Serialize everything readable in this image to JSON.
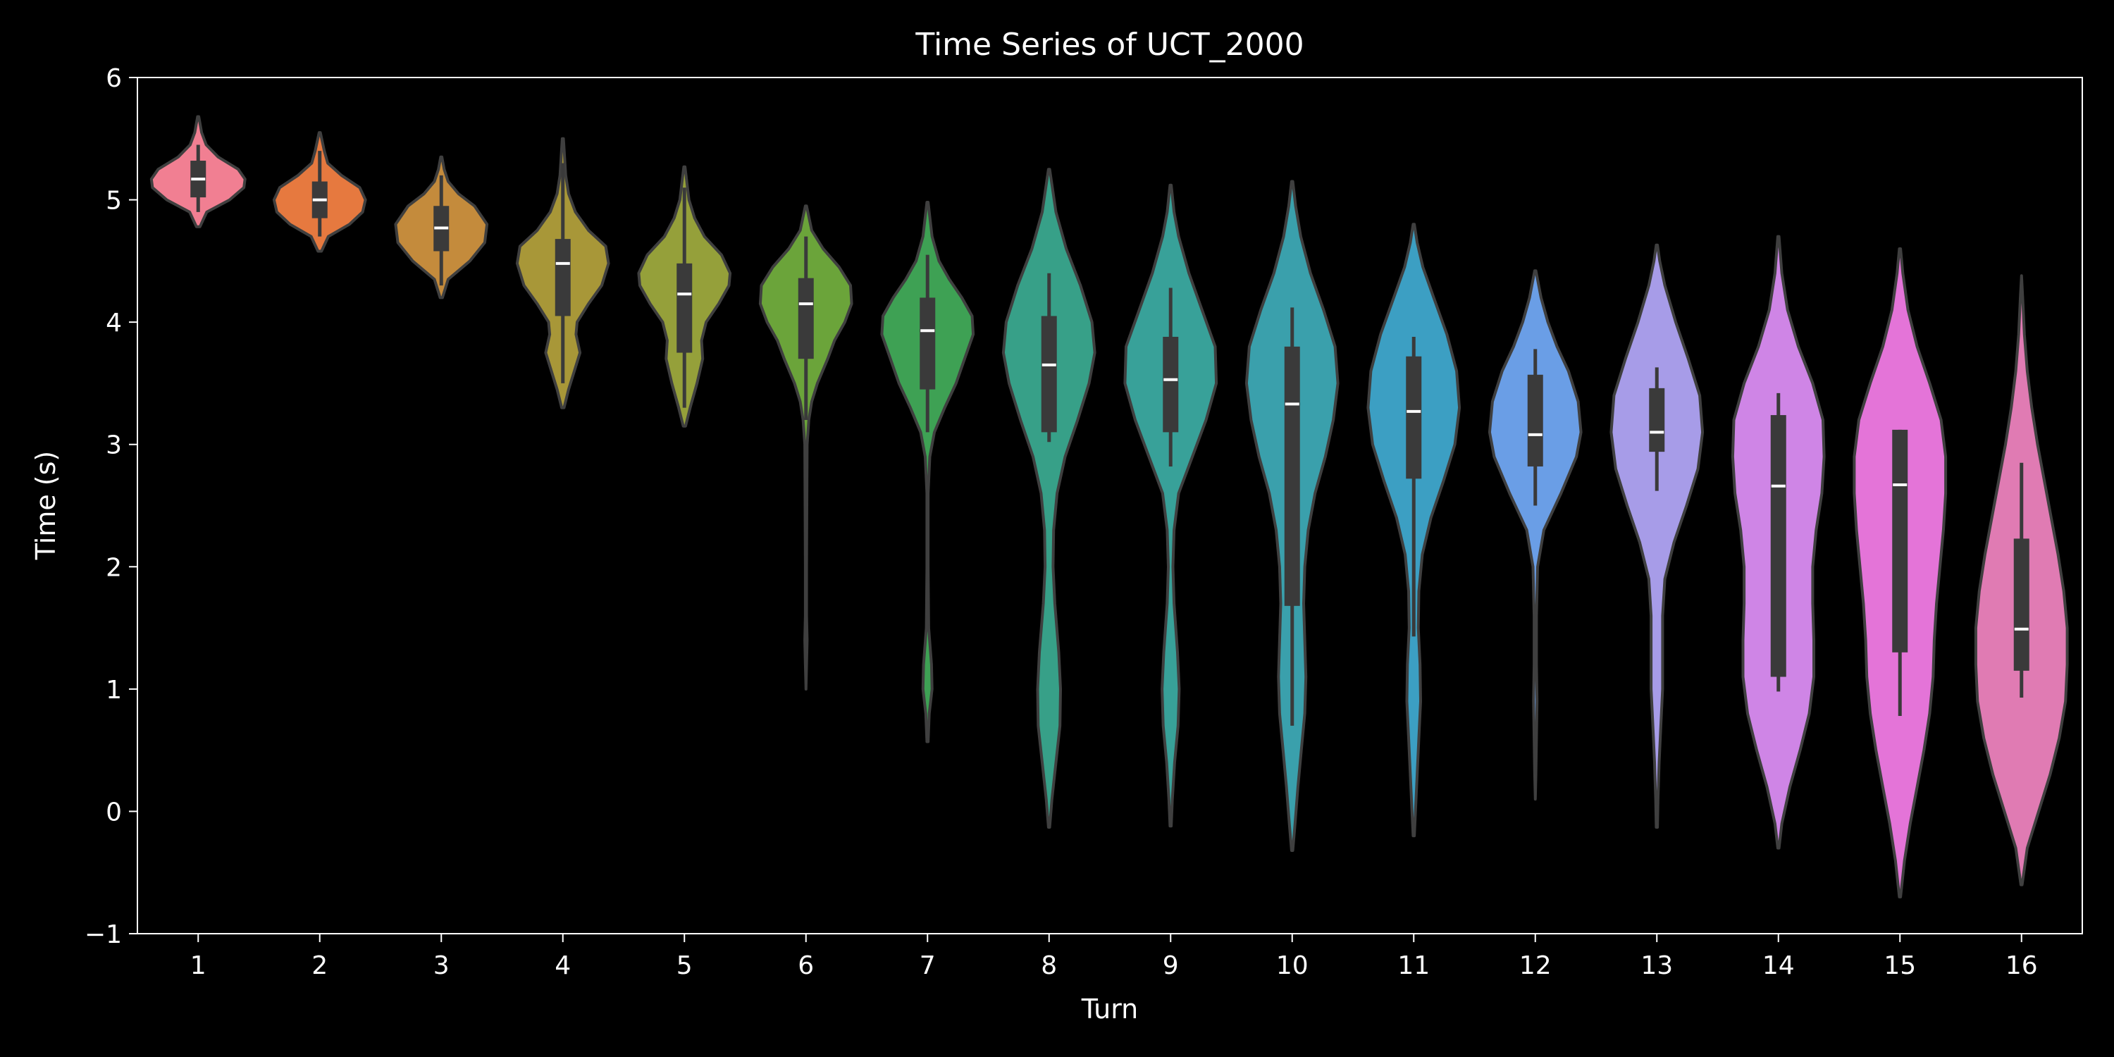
{
  "chart_data": {
    "type": "violin",
    "title": "Time Series of UCT_2000",
    "xlabel": "Turn",
    "ylabel": "Time (s)",
    "ylim": [
      -1,
      6
    ],
    "y_ticks": [
      -1,
      0,
      1,
      2,
      3,
      4,
      5,
      6
    ],
    "y_tick_labels": [
      "−1",
      "0",
      "1",
      "2",
      "3",
      "4",
      "5",
      "6"
    ],
    "grid": false,
    "legend": "none",
    "categories": [
      "1",
      "2",
      "3",
      "4",
      "5",
      "6",
      "7",
      "8",
      "9",
      "10",
      "11",
      "12",
      "13",
      "14",
      "15",
      "16"
    ],
    "series": [
      {
        "color": "#f17f92",
        "min": 4.78,
        "max": 5.68,
        "q1": 5.02,
        "median": 5.17,
        "q3": 5.32,
        "wmin": 4.9,
        "wmax": 5.45,
        "density": [
          [
            4.78,
            0.03
          ],
          [
            4.9,
            0.15
          ],
          [
            5.0,
            0.55
          ],
          [
            5.1,
            0.8
          ],
          [
            5.17,
            0.82
          ],
          [
            5.25,
            0.7
          ],
          [
            5.35,
            0.35
          ],
          [
            5.45,
            0.14
          ],
          [
            5.55,
            0.06
          ],
          [
            5.68,
            0.01
          ]
        ]
      },
      {
        "color": "#e6793f",
        "min": 4.58,
        "max": 5.55,
        "q1": 4.85,
        "median": 5.0,
        "q3": 5.15,
        "wmin": 4.7,
        "wmax": 5.4,
        "density": [
          [
            4.58,
            0.03
          ],
          [
            4.7,
            0.15
          ],
          [
            4.8,
            0.52
          ],
          [
            4.9,
            0.75
          ],
          [
            5.0,
            0.8
          ],
          [
            5.1,
            0.7
          ],
          [
            5.2,
            0.38
          ],
          [
            5.3,
            0.14
          ],
          [
            5.4,
            0.08
          ],
          [
            5.55,
            0.01
          ]
        ]
      },
      {
        "color": "#c48b3c",
        "min": 4.2,
        "max": 5.35,
        "q1": 4.58,
        "median": 4.77,
        "q3": 4.95,
        "wmin": 4.3,
        "wmax": 5.2,
        "density": [
          [
            4.2,
            0.02
          ],
          [
            4.35,
            0.12
          ],
          [
            4.5,
            0.5
          ],
          [
            4.65,
            0.76
          ],
          [
            4.8,
            0.8
          ],
          [
            4.95,
            0.58
          ],
          [
            5.05,
            0.3
          ],
          [
            5.15,
            0.12
          ],
          [
            5.25,
            0.05
          ],
          [
            5.35,
            0.01
          ]
        ]
      },
      {
        "color": "#a89738",
        "min": 3.3,
        "max": 5.5,
        "q1": 4.05,
        "median": 4.48,
        "q3": 4.68,
        "wmin": 3.5,
        "wmax": 5.3,
        "density": [
          [
            3.3,
            0.02
          ],
          [
            3.45,
            0.1
          ],
          [
            3.6,
            0.2
          ],
          [
            3.75,
            0.3
          ],
          [
            3.9,
            0.23
          ],
          [
            4.0,
            0.25
          ],
          [
            4.15,
            0.45
          ],
          [
            4.3,
            0.68
          ],
          [
            4.48,
            0.8
          ],
          [
            4.62,
            0.75
          ],
          [
            4.75,
            0.45
          ],
          [
            4.9,
            0.22
          ],
          [
            5.05,
            0.1
          ],
          [
            5.2,
            0.05
          ],
          [
            5.5,
            0.01
          ]
        ]
      },
      {
        "color": "#95a03a",
        "min": 3.15,
        "max": 5.27,
        "q1": 3.75,
        "median": 4.23,
        "q3": 4.48,
        "wmin": 3.3,
        "wmax": 5.1,
        "density": [
          [
            3.15,
            0.02
          ],
          [
            3.3,
            0.1
          ],
          [
            3.5,
            0.22
          ],
          [
            3.7,
            0.32
          ],
          [
            3.85,
            0.3
          ],
          [
            4.0,
            0.38
          ],
          [
            4.15,
            0.6
          ],
          [
            4.3,
            0.78
          ],
          [
            4.4,
            0.8
          ],
          [
            4.55,
            0.65
          ],
          [
            4.7,
            0.35
          ],
          [
            4.85,
            0.18
          ],
          [
            5.0,
            0.08
          ],
          [
            5.27,
            0.01
          ]
        ]
      },
      {
        "color": "#6ba43a",
        "min": 1.0,
        "max": 4.95,
        "q1": 3.7,
        "median": 4.15,
        "q3": 4.36,
        "wmin": 3.2,
        "wmax": 4.7,
        "density": [
          [
            1.0,
            0.0
          ],
          [
            1.2,
            0.01
          ],
          [
            1.4,
            0.02
          ],
          [
            1.6,
            0.01
          ],
          [
            2.0,
            0.01
          ],
          [
            3.0,
            0.02
          ],
          [
            3.2,
            0.05
          ],
          [
            3.35,
            0.1
          ],
          [
            3.5,
            0.2
          ],
          [
            3.7,
            0.38
          ],
          [
            3.85,
            0.5
          ],
          [
            4.0,
            0.68
          ],
          [
            4.15,
            0.8
          ],
          [
            4.3,
            0.78
          ],
          [
            4.45,
            0.58
          ],
          [
            4.6,
            0.3
          ],
          [
            4.75,
            0.1
          ],
          [
            4.95,
            0.01
          ]
        ]
      },
      {
        "color": "#3ea154",
        "min": 0.57,
        "max": 4.98,
        "q1": 3.45,
        "median": 3.93,
        "q3": 4.2,
        "wmin": 3.1,
        "wmax": 4.55,
        "density": [
          [
            0.57,
            0.01
          ],
          [
            0.8,
            0.03
          ],
          [
            1.0,
            0.08
          ],
          [
            1.2,
            0.07
          ],
          [
            1.5,
            0.02
          ],
          [
            2.0,
            0.01
          ],
          [
            2.6,
            0.01
          ],
          [
            2.9,
            0.04
          ],
          [
            3.1,
            0.12
          ],
          [
            3.3,
            0.3
          ],
          [
            3.5,
            0.5
          ],
          [
            3.7,
            0.65
          ],
          [
            3.9,
            0.8
          ],
          [
            4.05,
            0.78
          ],
          [
            4.2,
            0.6
          ],
          [
            4.35,
            0.38
          ],
          [
            4.5,
            0.2
          ],
          [
            4.7,
            0.08
          ],
          [
            4.98,
            0.01
          ]
        ]
      },
      {
        "color": "#37a088",
        "min": -0.13,
        "max": 5.25,
        "q1": 3.1,
        "median": 3.65,
        "q3": 4.05,
        "wmin": 3.02,
        "wmax": 4.4,
        "density": [
          [
            -0.13,
            0.01
          ],
          [
            0.1,
            0.05
          ],
          [
            0.4,
            0.12
          ],
          [
            0.7,
            0.19
          ],
          [
            1.0,
            0.2
          ],
          [
            1.3,
            0.17
          ],
          [
            1.7,
            0.1
          ],
          [
            2.0,
            0.07
          ],
          [
            2.3,
            0.08
          ],
          [
            2.6,
            0.14
          ],
          [
            2.9,
            0.28
          ],
          [
            3.2,
            0.5
          ],
          [
            3.5,
            0.7
          ],
          [
            3.75,
            0.8
          ],
          [
            4.0,
            0.75
          ],
          [
            4.3,
            0.55
          ],
          [
            4.6,
            0.3
          ],
          [
            4.9,
            0.12
          ],
          [
            5.25,
            0.01
          ]
        ]
      },
      {
        "color": "#38a199",
        "min": -0.12,
        "max": 5.12,
        "q1": 3.1,
        "median": 3.53,
        "q3": 3.88,
        "wmin": 2.82,
        "wmax": 4.28,
        "density": [
          [
            -0.12,
            0.01
          ],
          [
            0.1,
            0.03
          ],
          [
            0.4,
            0.07
          ],
          [
            0.7,
            0.13
          ],
          [
            1.0,
            0.15
          ],
          [
            1.3,
            0.12
          ],
          [
            1.7,
            0.06
          ],
          [
            2.0,
            0.04
          ],
          [
            2.3,
            0.06
          ],
          [
            2.6,
            0.14
          ],
          [
            2.9,
            0.38
          ],
          [
            3.2,
            0.62
          ],
          [
            3.5,
            0.8
          ],
          [
            3.8,
            0.78
          ],
          [
            4.1,
            0.55
          ],
          [
            4.4,
            0.32
          ],
          [
            4.7,
            0.14
          ],
          [
            4.9,
            0.06
          ],
          [
            5.12,
            0.01
          ]
        ]
      },
      {
        "color": "#3aa0ac",
        "min": -0.32,
        "max": 5.15,
        "q1": 1.68,
        "median": 3.33,
        "q3": 3.8,
        "wmin": 0.7,
        "wmax": 4.12,
        "density": [
          [
            -0.32,
            0.01
          ],
          [
            -0.1,
            0.05
          ],
          [
            0.2,
            0.1
          ],
          [
            0.5,
            0.16
          ],
          [
            0.8,
            0.22
          ],
          [
            1.1,
            0.24
          ],
          [
            1.4,
            0.22
          ],
          [
            1.7,
            0.2
          ],
          [
            2.0,
            0.22
          ],
          [
            2.3,
            0.28
          ],
          [
            2.6,
            0.4
          ],
          [
            2.9,
            0.58
          ],
          [
            3.2,
            0.72
          ],
          [
            3.5,
            0.8
          ],
          [
            3.8,
            0.75
          ],
          [
            4.1,
            0.55
          ],
          [
            4.4,
            0.32
          ],
          [
            4.7,
            0.15
          ],
          [
            4.95,
            0.06
          ],
          [
            5.15,
            0.01
          ]
        ]
      },
      {
        "color": "#3c9fc3",
        "min": -0.2,
        "max": 4.8,
        "q1": 2.72,
        "median": 3.27,
        "q3": 3.72,
        "wmin": 1.43,
        "wmax": 3.88,
        "density": [
          [
            -0.2,
            0.01
          ],
          [
            0.0,
            0.03
          ],
          [
            0.3,
            0.06
          ],
          [
            0.6,
            0.09
          ],
          [
            0.9,
            0.12
          ],
          [
            1.2,
            0.11
          ],
          [
            1.5,
            0.08
          ],
          [
            1.8,
            0.09
          ],
          [
            2.1,
            0.15
          ],
          [
            2.4,
            0.3
          ],
          [
            2.7,
            0.52
          ],
          [
            3.0,
            0.72
          ],
          [
            3.3,
            0.8
          ],
          [
            3.6,
            0.75
          ],
          [
            3.9,
            0.58
          ],
          [
            4.2,
            0.35
          ],
          [
            4.45,
            0.16
          ],
          [
            4.65,
            0.06
          ],
          [
            4.8,
            0.01
          ]
        ]
      },
      {
        "color": "#6a9ee6",
        "min": 0.1,
        "max": 4.42,
        "q1": 2.82,
        "median": 3.08,
        "q3": 3.57,
        "wmin": 2.5,
        "wmax": 3.78,
        "density": [
          [
            0.1,
            0.0
          ],
          [
            0.3,
            0.01
          ],
          [
            0.6,
            0.02
          ],
          [
            0.9,
            0.03
          ],
          [
            1.2,
            0.02
          ],
          [
            1.6,
            0.02
          ],
          [
            2.0,
            0.04
          ],
          [
            2.3,
            0.15
          ],
          [
            2.6,
            0.45
          ],
          [
            2.9,
            0.72
          ],
          [
            3.1,
            0.8
          ],
          [
            3.35,
            0.75
          ],
          [
            3.6,
            0.58
          ],
          [
            3.8,
            0.38
          ],
          [
            4.0,
            0.22
          ],
          [
            4.2,
            0.1
          ],
          [
            4.42,
            0.01
          ]
        ]
      },
      {
        "color": "#a79ce8",
        "min": -0.13,
        "max": 4.63,
        "q1": 2.94,
        "median": 3.1,
        "q3": 3.46,
        "wmin": 2.62,
        "wmax": 3.63,
        "density": [
          [
            -0.13,
            0.01
          ],
          [
            0.1,
            0.02
          ],
          [
            0.4,
            0.04
          ],
          [
            0.7,
            0.07
          ],
          [
            1.0,
            0.1
          ],
          [
            1.3,
            0.1
          ],
          [
            1.6,
            0.1
          ],
          [
            1.9,
            0.14
          ],
          [
            2.2,
            0.3
          ],
          [
            2.5,
            0.52
          ],
          [
            2.8,
            0.72
          ],
          [
            3.1,
            0.8
          ],
          [
            3.4,
            0.75
          ],
          [
            3.7,
            0.55
          ],
          [
            4.0,
            0.33
          ],
          [
            4.3,
            0.14
          ],
          [
            4.5,
            0.05
          ],
          [
            4.63,
            0.01
          ]
        ]
      },
      {
        "color": "#cf85e6",
        "min": -0.3,
        "max": 4.7,
        "q1": 1.1,
        "median": 2.66,
        "q3": 3.24,
        "wmin": 0.98,
        "wmax": 3.42,
        "density": [
          [
            -0.3,
            0.01
          ],
          [
            -0.1,
            0.06
          ],
          [
            0.2,
            0.2
          ],
          [
            0.5,
            0.38
          ],
          [
            0.8,
            0.54
          ],
          [
            1.1,
            0.62
          ],
          [
            1.4,
            0.62
          ],
          [
            1.7,
            0.6
          ],
          [
            2.0,
            0.6
          ],
          [
            2.3,
            0.66
          ],
          [
            2.6,
            0.76
          ],
          [
            2.9,
            0.8
          ],
          [
            3.2,
            0.78
          ],
          [
            3.5,
            0.6
          ],
          [
            3.8,
            0.35
          ],
          [
            4.1,
            0.16
          ],
          [
            4.4,
            0.06
          ],
          [
            4.7,
            0.01
          ]
        ]
      },
      {
        "color": "#e474d8",
        "min": -0.7,
        "max": 4.6,
        "q1": 1.3,
        "median": 2.67,
        "q3": 3.12,
        "wmin": 0.78,
        "wmax": 3.12,
        "density": [
          [
            -0.7,
            0.01
          ],
          [
            -0.4,
            0.08
          ],
          [
            -0.1,
            0.18
          ],
          [
            0.2,
            0.3
          ],
          [
            0.5,
            0.42
          ],
          [
            0.8,
            0.52
          ],
          [
            1.1,
            0.58
          ],
          [
            1.4,
            0.6
          ],
          [
            1.7,
            0.64
          ],
          [
            2.0,
            0.7
          ],
          [
            2.3,
            0.76
          ],
          [
            2.6,
            0.8
          ],
          [
            2.9,
            0.8
          ],
          [
            3.2,
            0.72
          ],
          [
            3.5,
            0.52
          ],
          [
            3.8,
            0.3
          ],
          [
            4.1,
            0.14
          ],
          [
            4.4,
            0.05
          ],
          [
            4.6,
            0.01
          ]
        ]
      },
      {
        "color": "#e07bb3",
        "min": -0.6,
        "max": 4.38,
        "q1": 1.15,
        "median": 1.49,
        "q3": 2.23,
        "wmin": 0.93,
        "wmax": 2.85,
        "density": [
          [
            -0.6,
            0.01
          ],
          [
            -0.3,
            0.1
          ],
          [
            0.0,
            0.3
          ],
          [
            0.3,
            0.5
          ],
          [
            0.6,
            0.66
          ],
          [
            0.9,
            0.77
          ],
          [
            1.2,
            0.8
          ],
          [
            1.5,
            0.8
          ],
          [
            1.8,
            0.74
          ],
          [
            2.1,
            0.64
          ],
          [
            2.4,
            0.52
          ],
          [
            2.7,
            0.4
          ],
          [
            3.0,
            0.28
          ],
          [
            3.3,
            0.18
          ],
          [
            3.6,
            0.1
          ],
          [
            3.9,
            0.05
          ],
          [
            4.2,
            0.02
          ],
          [
            4.38,
            0.0
          ]
        ]
      }
    ]
  }
}
